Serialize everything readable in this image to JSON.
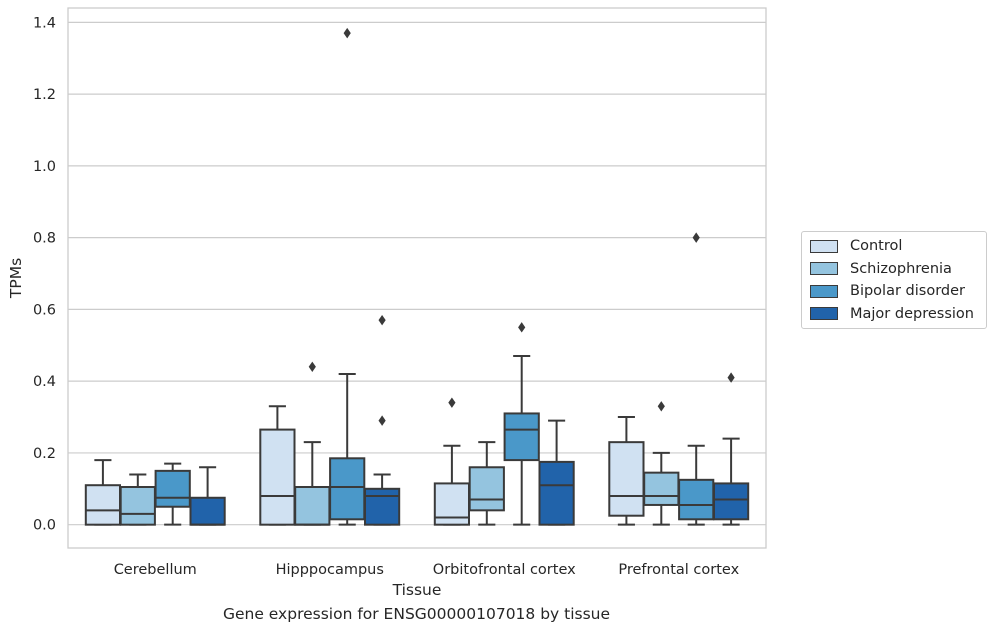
{
  "chart_data": {
    "type": "boxplot",
    "title": "",
    "caption": "Gene expression for ENSG00000107018 by tissue",
    "xlabel": "Tissue",
    "ylabel": "TPMs",
    "ylim": [
      -0.065,
      1.44
    ],
    "yticks": [
      0.0,
      0.2,
      0.4,
      0.6,
      0.8,
      1.0,
      1.2,
      1.4
    ],
    "ytick_labels": [
      "0.0",
      "0.2",
      "0.4",
      "0.6",
      "0.8",
      "1.0",
      "1.2",
      "1.4"
    ],
    "grid": "horizontal",
    "legend_position": "outside-right",
    "categories": [
      "Cerebellum",
      "Hipppocampus",
      "Orbitofrontal cortex",
      "Prefrontal cortex"
    ],
    "series": [
      {
        "name": "Control",
        "color": "#d0e1f2",
        "boxes": [
          {
            "whisker_low": 0.0,
            "q1": 0.0,
            "median": 0.04,
            "q3": 0.11,
            "whisker_high": 0.18,
            "outliers": []
          },
          {
            "whisker_low": 0.0,
            "q1": 0.0,
            "median": 0.08,
            "q3": 0.265,
            "whisker_high": 0.33,
            "outliers": []
          },
          {
            "whisker_low": 0.0,
            "q1": 0.0,
            "median": 0.02,
            "q3": 0.115,
            "whisker_high": 0.22,
            "outliers": [
              0.34
            ]
          },
          {
            "whisker_low": 0.0,
            "q1": 0.025,
            "median": 0.08,
            "q3": 0.23,
            "whisker_high": 0.3,
            "outliers": []
          }
        ]
      },
      {
        "name": "Schizophrenia",
        "color": "#94c4df",
        "boxes": [
          {
            "whisker_low": 0.0,
            "q1": 0.0,
            "median": 0.03,
            "q3": 0.105,
            "whisker_high": 0.14,
            "outliers": []
          },
          {
            "whisker_low": 0.0,
            "q1": 0.0,
            "median": 0.0,
            "q3": 0.105,
            "whisker_high": 0.23,
            "outliers": [
              0.44
            ]
          },
          {
            "whisker_low": 0.0,
            "q1": 0.04,
            "median": 0.07,
            "q3": 0.16,
            "whisker_high": 0.23,
            "outliers": []
          },
          {
            "whisker_low": 0.0,
            "q1": 0.055,
            "median": 0.08,
            "q3": 0.145,
            "whisker_high": 0.2,
            "outliers": [
              0.33
            ]
          }
        ]
      },
      {
        "name": "Bipolar disorder",
        "color": "#4a98c9",
        "boxes": [
          {
            "whisker_low": 0.0,
            "q1": 0.05,
            "median": 0.075,
            "q3": 0.15,
            "whisker_high": 0.17,
            "outliers": []
          },
          {
            "whisker_low": 0.0,
            "q1": 0.015,
            "median": 0.105,
            "q3": 0.185,
            "whisker_high": 0.42,
            "outliers": [
              1.37
            ]
          },
          {
            "whisker_low": 0.0,
            "q1": 0.18,
            "median": 0.265,
            "q3": 0.31,
            "whisker_high": 0.47,
            "outliers": [
              0.55
            ]
          },
          {
            "whisker_low": 0.0,
            "q1": 0.015,
            "median": 0.055,
            "q3": 0.125,
            "whisker_high": 0.22,
            "outliers": [
              0.8
            ]
          }
        ]
      },
      {
        "name": "Major depression",
        "color": "#2163aa",
        "boxes": [
          {
            "whisker_low": 0.0,
            "q1": 0.0,
            "median": 0.0,
            "q3": 0.075,
            "whisker_high": 0.16,
            "outliers": []
          },
          {
            "whisker_low": 0.0,
            "q1": 0.0,
            "median": 0.08,
            "q3": 0.1,
            "whisker_high": 0.14,
            "outliers": [
              0.29,
              0.57
            ]
          },
          {
            "whisker_low": 0.0,
            "q1": 0.0,
            "median": 0.11,
            "q3": 0.175,
            "whisker_high": 0.29,
            "outliers": []
          },
          {
            "whisker_low": 0.0,
            "q1": 0.015,
            "median": 0.07,
            "q3": 0.115,
            "whisker_high": 0.24,
            "outliers": [
              0.41
            ]
          }
        ]
      }
    ]
  }
}
